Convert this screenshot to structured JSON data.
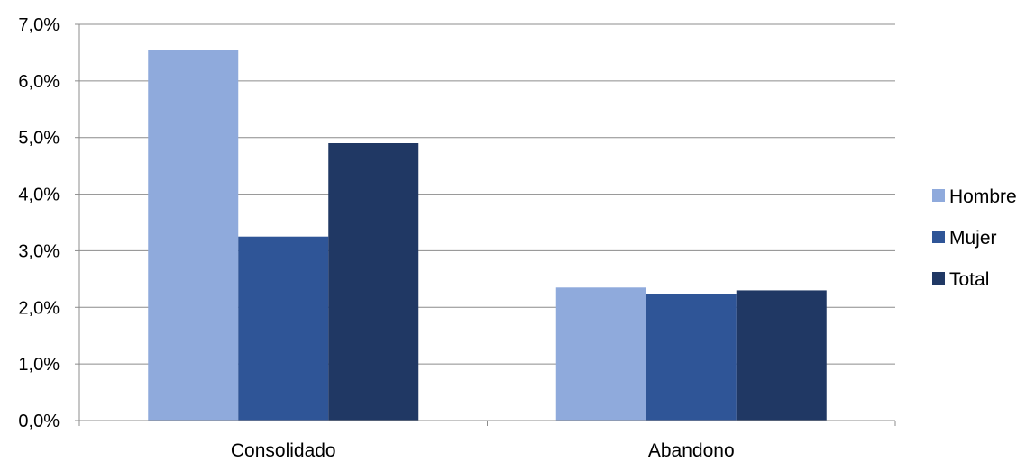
{
  "chart_data": {
    "type": "bar",
    "categories": [
      "Consolidado",
      "Abandono"
    ],
    "series": [
      {
        "name": "Hombre",
        "values": [
          6.55,
          2.35
        ],
        "color": "#8faadc"
      },
      {
        "name": "Mujer",
        "values": [
          3.25,
          2.23
        ],
        "color": "#2f5597"
      },
      {
        "name": "Total",
        "values": [
          4.9,
          2.3
        ],
        "color": "#203864"
      }
    ],
    "y_ticks": [
      "0,0%",
      "1,0%",
      "2,0%",
      "3,0%",
      "4,0%",
      "5,0%",
      "6,0%",
      "7,0%"
    ],
    "ylim": [
      0,
      7
    ],
    "y_unit": "%",
    "grid": true,
    "legend_position": "right",
    "title": "",
    "xlabel": "",
    "ylabel": ""
  }
}
